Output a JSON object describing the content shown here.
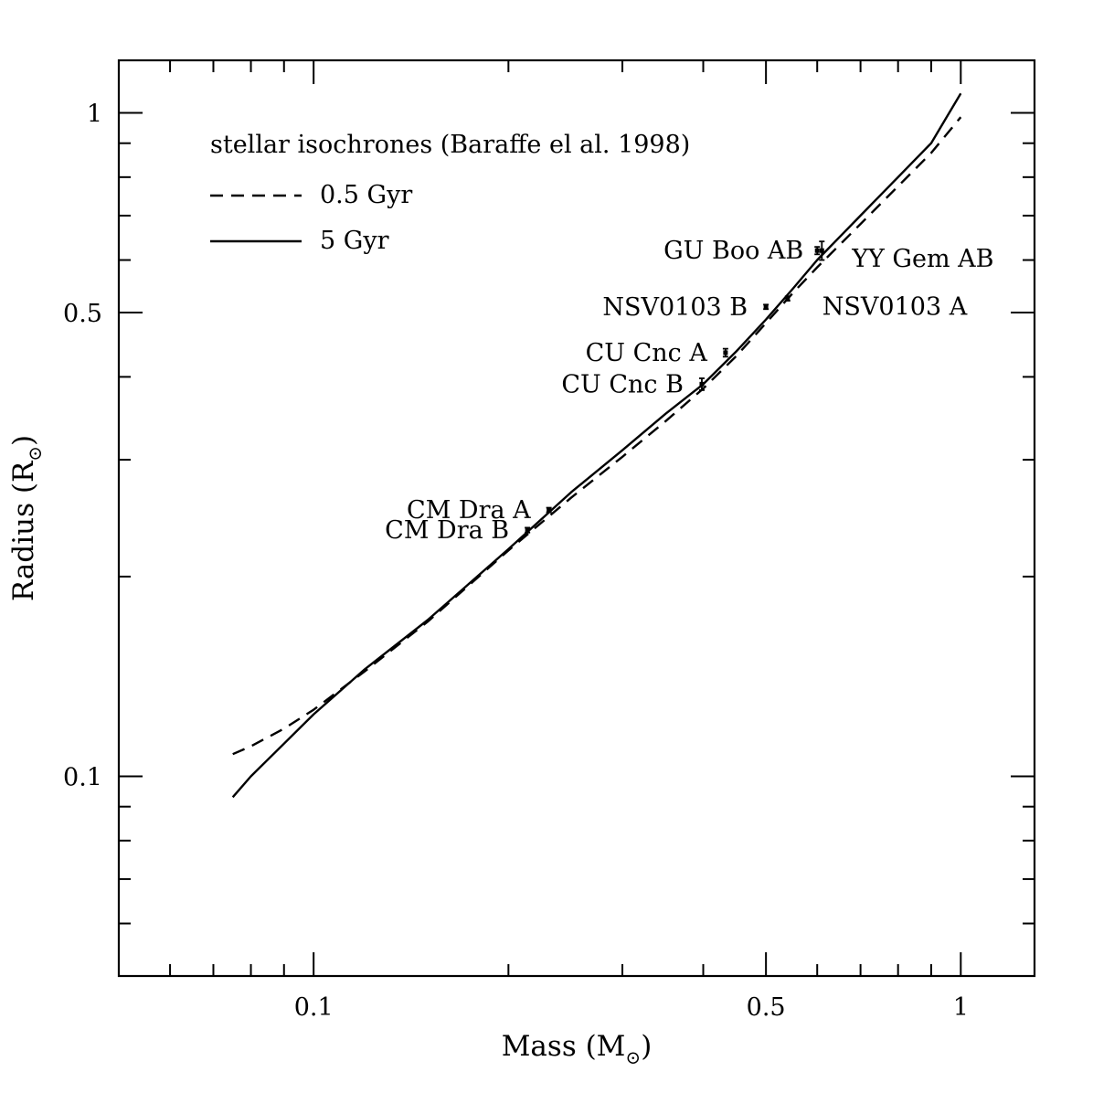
{
  "chart_data": {
    "type": "line",
    "xlabel": "Mass (M",
    "xlabel_sub": "⊙",
    "xlabel_close": ")",
    "ylabel": "Radius (R",
    "ylabel_sub": "⊙",
    "ylabel_close": ")",
    "xscale": "log",
    "yscale": "log",
    "xlim": [
      0.05,
      1.3
    ],
    "ylim": [
      0.05,
      1.2
    ],
    "grid": false,
    "legend_position": "top-left",
    "legend_title": "stellar isochrones (Baraffe el al. 1998)",
    "x_ticks_major": [
      0.1,
      0.5,
      1
    ],
    "x_tick_labels": [
      "0.1",
      "0.5",
      "1"
    ],
    "x_ticks_minor": [
      0.06,
      0.07,
      0.08,
      0.09,
      0.2,
      0.3,
      0.4,
      0.6,
      0.7,
      0.8,
      0.9
    ],
    "y_ticks_major": [
      0.1,
      0.5,
      1
    ],
    "y_tick_labels": [
      "0.1",
      "0.5",
      "1"
    ],
    "y_ticks_minor": [
      0.06,
      0.07,
      0.08,
      0.09,
      0.2,
      0.3,
      0.4,
      0.6,
      0.7,
      0.8,
      0.9
    ],
    "series": [
      {
        "name": "0.5 Gyr",
        "style": "dashed",
        "points": [
          [
            0.075,
            0.108
          ],
          [
            0.08,
            0.111
          ],
          [
            0.09,
            0.118
          ],
          [
            0.1,
            0.126
          ],
          [
            0.12,
            0.144
          ],
          [
            0.15,
            0.171
          ],
          [
            0.2,
            0.219
          ],
          [
            0.25,
            0.263
          ],
          [
            0.3,
            0.303
          ],
          [
            0.35,
            0.343
          ],
          [
            0.4,
            0.384
          ],
          [
            0.45,
            0.43
          ],
          [
            0.5,
            0.482
          ],
          [
            0.55,
            0.535
          ],
          [
            0.6,
            0.585
          ],
          [
            0.7,
            0.68
          ],
          [
            0.8,
            0.775
          ],
          [
            0.9,
            0.87
          ],
          [
            1.0,
            0.985
          ]
        ]
      },
      {
        "name": "5 Gyr",
        "style": "solid",
        "points": [
          [
            0.075,
            0.093
          ],
          [
            0.08,
            0.1
          ],
          [
            0.09,
            0.112
          ],
          [
            0.1,
            0.124
          ],
          [
            0.12,
            0.145
          ],
          [
            0.15,
            0.172
          ],
          [
            0.2,
            0.22
          ],
          [
            0.25,
            0.268
          ],
          [
            0.3,
            0.31
          ],
          [
            0.35,
            0.352
          ],
          [
            0.4,
            0.39
          ],
          [
            0.45,
            0.437
          ],
          [
            0.5,
            0.488
          ],
          [
            0.55,
            0.543
          ],
          [
            0.6,
            0.6
          ],
          [
            0.7,
            0.7
          ],
          [
            0.8,
            0.8
          ],
          [
            0.9,
            0.9
          ],
          [
            1.0,
            1.07
          ]
        ]
      }
    ],
    "points": [
      {
        "label": "GU Boo AB",
        "x": 0.61,
        "y": 0.62,
        "yerr": 0.02,
        "label_side": "left"
      },
      {
        "label": "YY Gem AB",
        "x": 0.6,
        "y": 0.62,
        "yerr": 0.008,
        "label_side": "right"
      },
      {
        "label": "NSV0103 B",
        "x": 0.5,
        "y": 0.51,
        "yerr": 0.004,
        "label_side": "left"
      },
      {
        "label": "NSV0103 A",
        "x": 0.54,
        "y": 0.525,
        "yerr": 0.004,
        "label_side": "right"
      },
      {
        "label": "CU Cnc A",
        "x": 0.433,
        "y": 0.435,
        "yerr": 0.006,
        "label_side": "left"
      },
      {
        "label": "CU Cnc B",
        "x": 0.398,
        "y": 0.39,
        "yerr": 0.008,
        "label_side": "left"
      },
      {
        "label": "CM Dra A",
        "x": 0.231,
        "y": 0.252,
        "yerr": 0.002,
        "label_side": "left"
      },
      {
        "label": "CM Dra B",
        "x": 0.214,
        "y": 0.235,
        "yerr": 0.002,
        "label_side": "left"
      }
    ]
  }
}
